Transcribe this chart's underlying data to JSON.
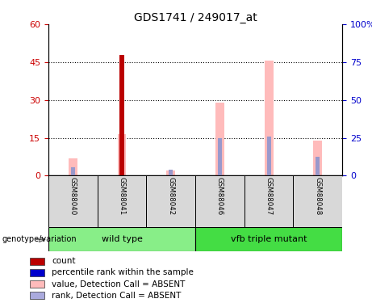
{
  "title": "GDS1741 / 249017_at",
  "samples": [
    "GSM88040",
    "GSM88041",
    "GSM88042",
    "GSM88046",
    "GSM88047",
    "GSM88048"
  ],
  "groups": [
    {
      "label": "wild type",
      "color": "#88ee88",
      "samples": [
        0,
        1,
        2
      ]
    },
    {
      "label": "vfb triple mutant",
      "color": "#44dd44",
      "samples": [
        3,
        4,
        5
      ]
    }
  ],
  "count_values": [
    0,
    48,
    0,
    0,
    0,
    0
  ],
  "count_color": "#bb0000",
  "pink_values": [
    7,
    16.5,
    2,
    29,
    45.5,
    14
  ],
  "pink_color": "#ffbbbb",
  "blue_rank_values": [
    3.5,
    16,
    2.5,
    15,
    15.5,
    7.5
  ],
  "blue_color": "#9999cc",
  "left_ylim": [
    0,
    60
  ],
  "left_yticks": [
    0,
    15,
    30,
    45,
    60
  ],
  "right_ylim": [
    0,
    100
  ],
  "right_yticks": [
    0,
    25,
    50,
    75,
    100
  ],
  "right_yticklabels": [
    "0",
    "25",
    "50",
    "75",
    "100%"
  ],
  "left_tick_color": "#cc0000",
  "right_tick_color": "#0000cc",
  "pink_bar_width": 0.18,
  "blue_bar_width": 0.08,
  "red_bar_width": 0.1,
  "legend_items": [
    {
      "label": "count",
      "color": "#bb0000"
    },
    {
      "label": "percentile rank within the sample",
      "color": "#0000cc"
    },
    {
      "label": "value, Detection Call = ABSENT",
      "color": "#ffbbbb"
    },
    {
      "label": "rank, Detection Call = ABSENT",
      "color": "#aaaadd"
    }
  ],
  "genotype_label": "genotype/variation",
  "sample_box_color": "#d8d8d8",
  "group_box_border": "#000000"
}
